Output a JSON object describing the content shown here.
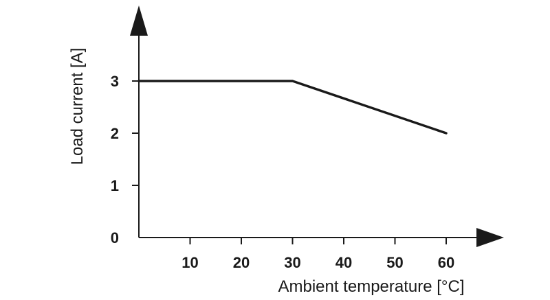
{
  "chart_data": {
    "type": "line",
    "title": "",
    "xlabel": "Ambient temperature [°C]",
    "ylabel": "Load current [A]",
    "xlim": [
      0,
      70
    ],
    "ylim": [
      0,
      3.4
    ],
    "x_ticks": [
      10,
      20,
      30,
      40,
      50,
      60
    ],
    "y_ticks": [
      0,
      1,
      2,
      3
    ],
    "grid": false,
    "legend": "none",
    "series": [
      {
        "points": [
          [
            0,
            3
          ],
          [
            30,
            3
          ],
          [
            60,
            2
          ]
        ]
      }
    ],
    "colors": {
      "line": "#1a1a1a",
      "axis": "#1a1a1a"
    }
  }
}
